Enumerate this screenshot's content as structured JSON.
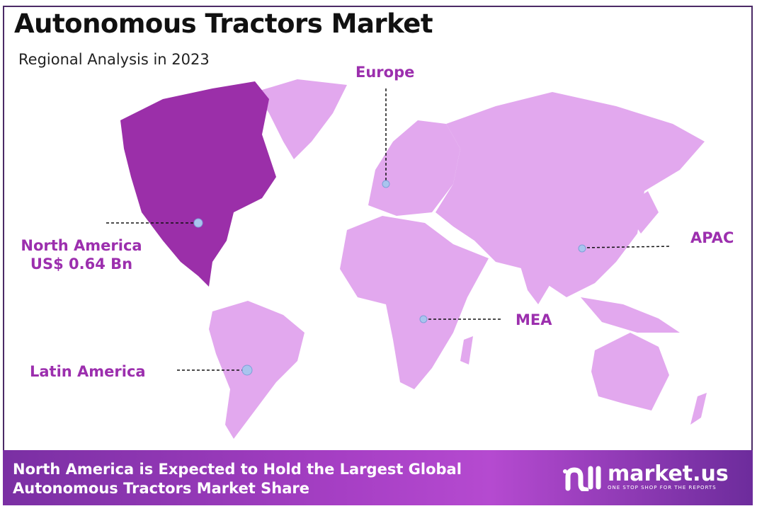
{
  "header": {
    "title": "Autonomous Tractors Market",
    "subtitle": "Regional Analysis in 2023"
  },
  "colors": {
    "highlight": "#9b2fa9",
    "other_regions": "#e2a8ee",
    "label": "#9c2fae",
    "marker": "#a9c4ee",
    "frame": "#4b2a66"
  },
  "regions": [
    {
      "name": "North America",
      "value": "US$ 0.64 Bn",
      "highlighted": true
    },
    {
      "name": "Europe",
      "highlighted": false
    },
    {
      "name": "APAC",
      "highlighted": false
    },
    {
      "name": "MEA",
      "highlighted": false
    },
    {
      "name": "Latin America",
      "highlighted": false
    }
  ],
  "banner": {
    "line1": "North America is Expected to Hold the Largest Global",
    "line2": "Autonomous Tractors Market Share"
  },
  "logo": {
    "name": "market.us",
    "tagline": "ONE STOP SHOP FOR THE REPORTS",
    "icon": "market-us-logo-icon"
  }
}
